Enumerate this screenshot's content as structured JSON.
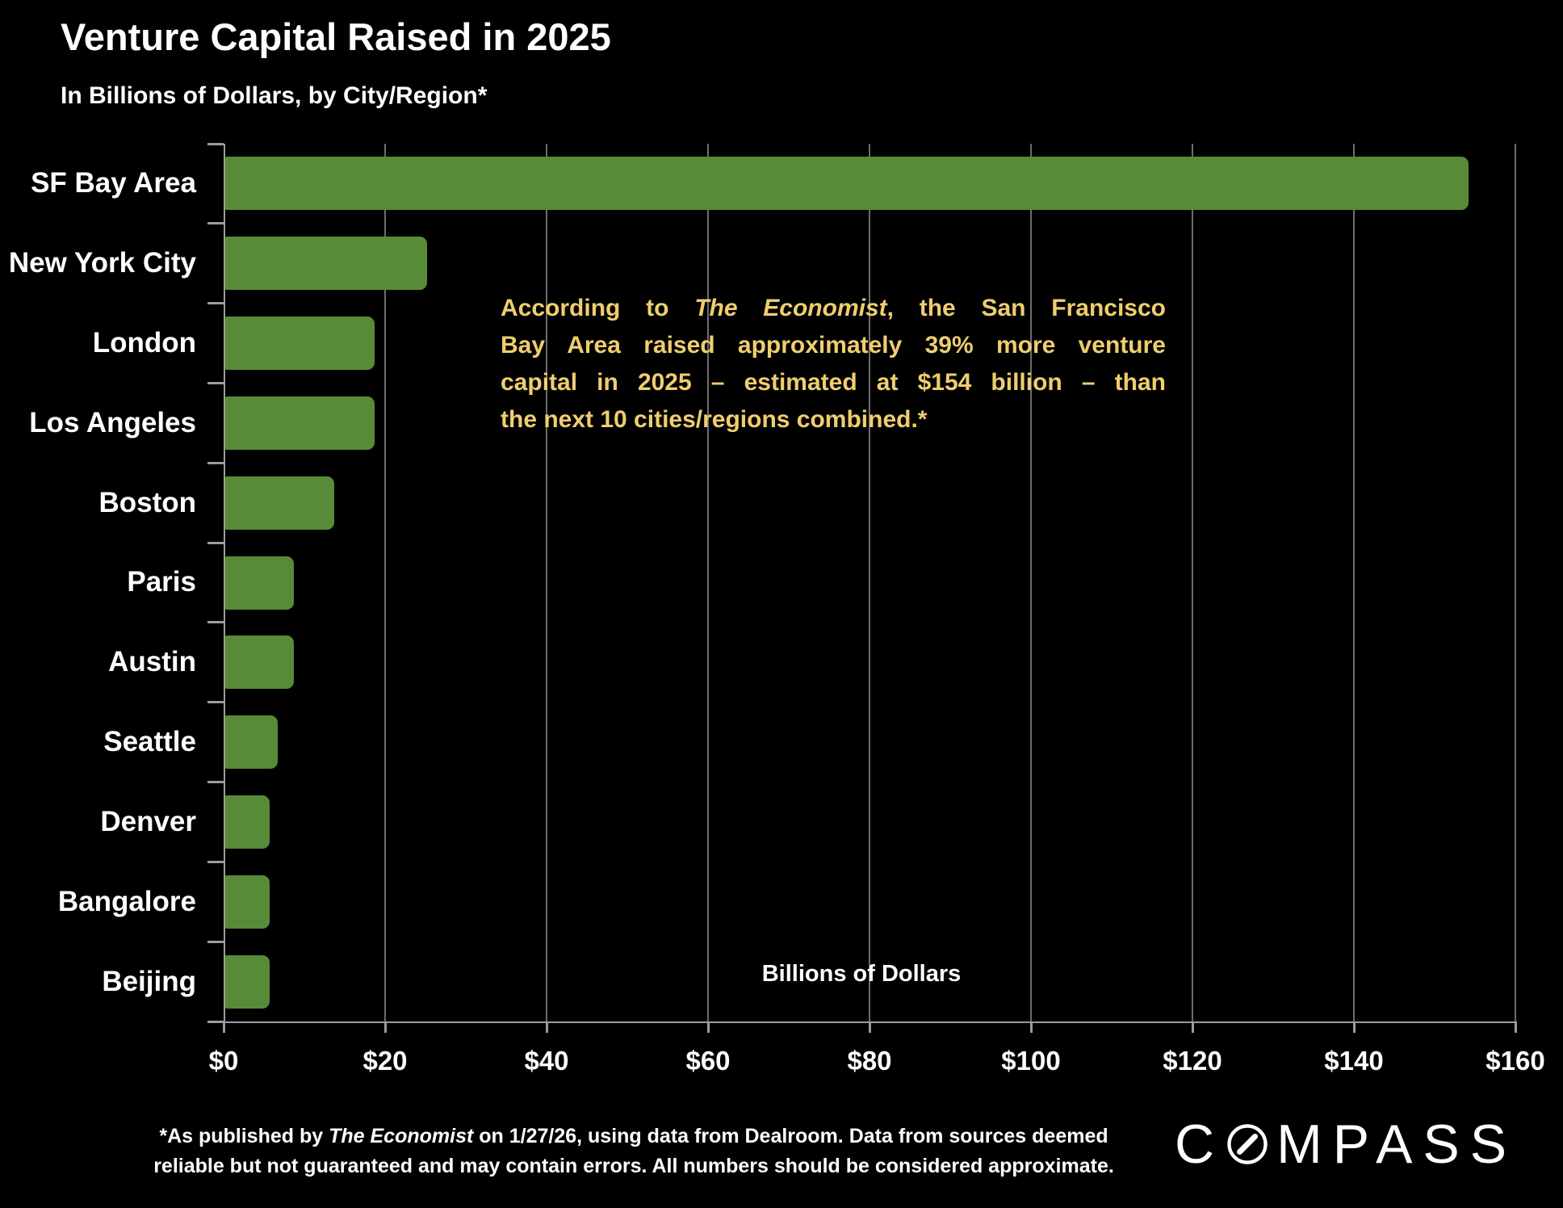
{
  "header": {
    "title": "Venture Capital Raised in 2025",
    "subtitle": "In Billions of Dollars, by City/Region*"
  },
  "chart_data": {
    "type": "bar",
    "orientation": "horizontal",
    "title": "Venture Capital Raised in 2025",
    "subtitle": "In Billions of Dollars, by City/Region*",
    "categories": [
      "SF Bay Area",
      "New York City",
      "London",
      "Los Angeles",
      "Boston",
      "Paris",
      "Austin",
      "Seattle",
      "Denver",
      "Bangalore",
      "Beijing"
    ],
    "values": [
      154,
      25,
      18.5,
      18.5,
      13.5,
      8.5,
      8.5,
      6.5,
      5.5,
      5.5,
      5.5
    ],
    "xlabel": "Billions of Dollars",
    "ylabel": "",
    "xlim": [
      0,
      160
    ],
    "xticks": [
      0,
      20,
      40,
      60,
      80,
      100,
      120,
      140,
      160
    ],
    "xtick_labels": [
      "$0",
      "$20",
      "$40",
      "$60",
      "$80",
      "$100",
      "$120",
      "$140",
      "$160"
    ],
    "grid": true,
    "legend": false,
    "bar_color": "#588b38",
    "gridline_color": "#6d6d6d",
    "axis_color": "#9c9c9c",
    "background_color": "#000000",
    "text_color": "#ffffff"
  },
  "annotation": {
    "color": "#efce6e",
    "line1_pre": "According to ",
    "line1_italic": "The Economist",
    "line1_post": ", the San Francisco",
    "line2": "Bay Area raised approximately 39% more venture",
    "line3": "capital in 2025 – estimated at $154 billion – than",
    "line4": "the next 10 cities/regions combined.*"
  },
  "footer": {
    "line1_pre": "*As published by ",
    "line1_italic": "The Economist",
    "line1_post": " on 1/27/26, using data from Dealroom. Data from sources deemed",
    "line2": "reliable but not guaranteed and may contain errors. All numbers should be considered approximate.",
    "logo_prefix": "C",
    "logo_suffix": "MPASS"
  }
}
